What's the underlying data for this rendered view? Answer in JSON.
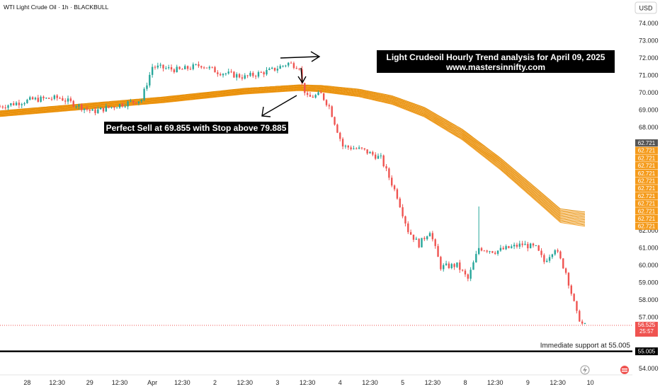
{
  "header": {
    "symbol_title": "WTI Light Crude Oil · 1h · BLACKBULL",
    "currency": "USD"
  },
  "chart_data": {
    "type": "candlestick",
    "y_ticks": [
      "74.000",
      "73.000",
      "72.000",
      "71.000",
      "70.000",
      "69.000",
      "68.000",
      "62.000",
      "61.000",
      "60.000",
      "59.000",
      "58.000",
      "57.000",
      "54.000"
    ],
    "ylim": [
      53.9,
      74.5
    ],
    "x_ticks": [
      "28",
      "12:30",
      "29",
      "12:30",
      "Apr",
      "12:30",
      "2",
      "12:30",
      "3",
      "12:30",
      "4",
      "12:30",
      "5",
      "12:30",
      "8",
      "12:30",
      "9",
      "12:30",
      "10"
    ],
    "x_index_range": [
      0,
      215
    ],
    "x_tick_index": [
      10,
      21,
      33,
      44,
      56,
      67,
      79,
      90,
      102,
      113,
      125,
      136,
      148,
      159,
      171,
      182,
      194,
      205,
      217
    ],
    "ema_band_labels": [
      "62.721",
      "62.721",
      "62.721",
      "62.721",
      "62.721",
      "62.721",
      "62.721",
      "62.721",
      "62.721",
      "62.721",
      "62.721",
      "62.721"
    ],
    "last_price": {
      "value": "56.525",
      "countdown": "25:57"
    },
    "support": {
      "value": "55.005",
      "label": "Immediate support at 55.005"
    },
    "annotations": {
      "title_line1": "Light Crudeoil Hourly Trend analysis for April 09, 2025",
      "title_line2": "www.mastersinnifty.com",
      "sell_text": "Perfect Sell at 69.855 with Stop above 79.885"
    },
    "colors": {
      "up": "#26a69a",
      "down": "#ef5350",
      "ema": "#f59b1b",
      "ema_dark": "#e08a00",
      "support_line": "#000000",
      "label_bg": "#000000"
    }
  }
}
